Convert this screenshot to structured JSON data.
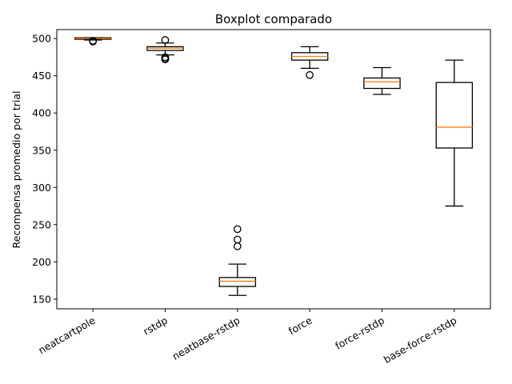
{
  "chart_data": {
    "type": "boxplot",
    "title": "Boxplot comparado",
    "xlabel": "",
    "ylabel": "Recompensa promedio por trial",
    "ylim": [
      137,
      512
    ],
    "yticks": [
      150,
      200,
      250,
      300,
      350,
      400,
      450,
      500
    ],
    "grid": false,
    "categories": [
      "neatcartpole",
      "rstdp",
      "neatbase-rstdp",
      "force",
      "force-rstdp",
      "base-force-rstdp"
    ],
    "boxes": [
      {
        "q1": 499,
        "median": 500,
        "q3": 501,
        "whisker_low": 498,
        "whisker_high": 501,
        "outliers": [
          496,
          497
        ]
      },
      {
        "q1": 484,
        "median": 487,
        "q3": 489,
        "whisker_low": 478,
        "whisker_high": 494,
        "outliers": [
          498,
          475,
          473,
          472
        ]
      },
      {
        "q1": 167,
        "median": 174,
        "q3": 179,
        "whisker_low": 155,
        "whisker_high": 197,
        "outliers": [
          244,
          230,
          221
        ]
      },
      {
        "q1": 471,
        "median": 476,
        "q3": 481,
        "whisker_low": 460,
        "whisker_high": 489,
        "outliers": [
          451
        ]
      },
      {
        "q1": 433,
        "median": 442,
        "q3": 447,
        "whisker_low": 425,
        "whisker_high": 461,
        "outliers": []
      },
      {
        "q1": 353,
        "median": 381,
        "q3": 441,
        "whisker_low": 275,
        "whisker_high": 471,
        "outliers": []
      }
    ],
    "colors": {
      "box": "#000000",
      "median": "#ff7f0e"
    }
  }
}
